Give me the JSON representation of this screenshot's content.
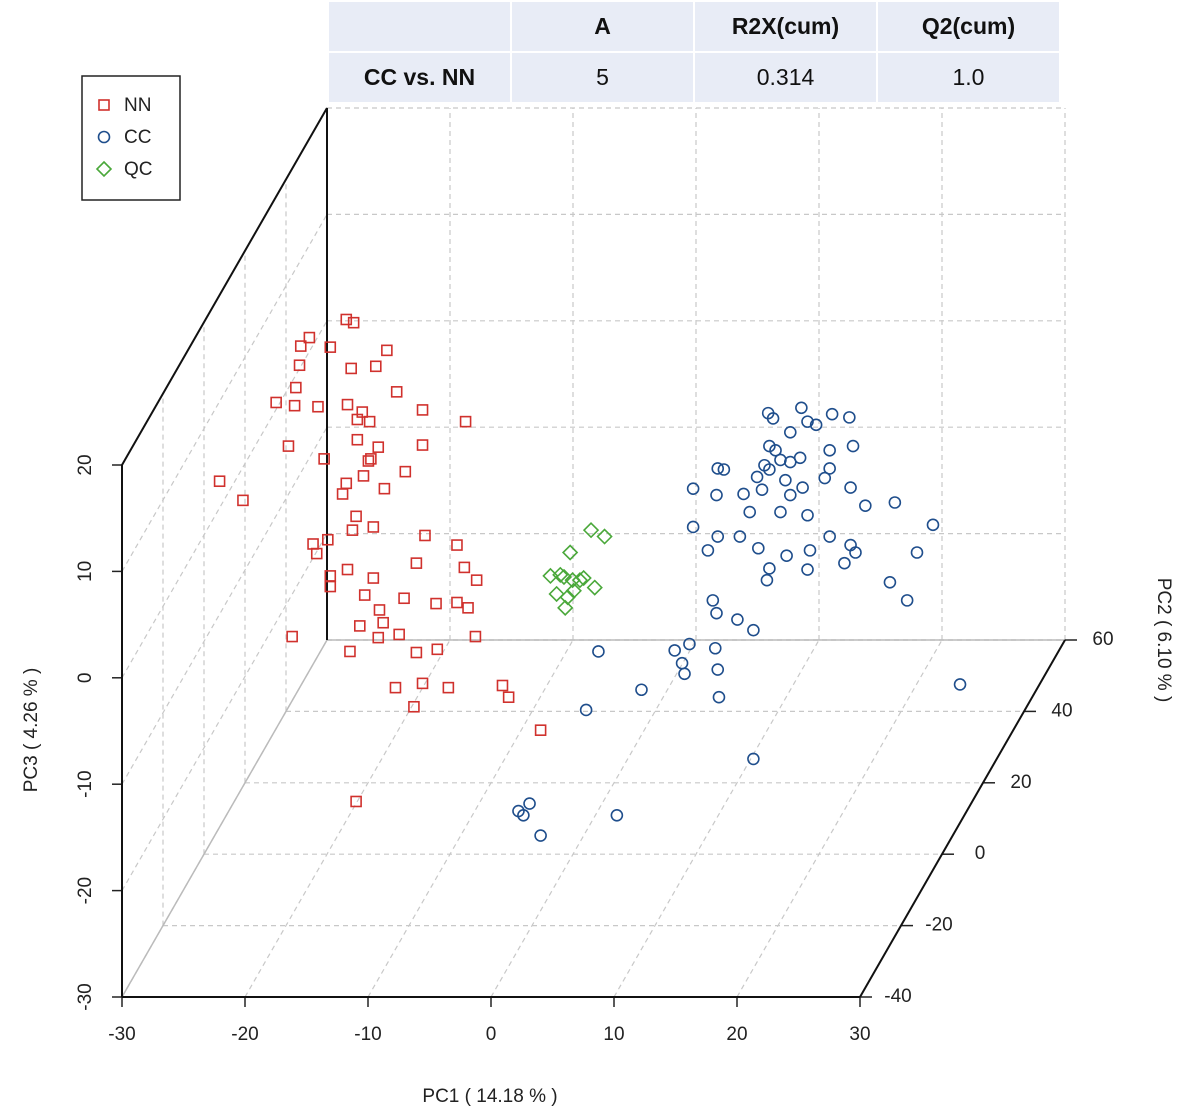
{
  "table": {
    "header": [
      "A",
      "R2X(cum)",
      "Q2(cum)"
    ],
    "rows": [
      [
        "CC vs. NN",
        "5",
        "0.314",
        "1.0"
      ]
    ]
  },
  "chart_data": {
    "type": "scatter3d",
    "xlabel": "PC1 ( 14.18 % )",
    "ylabel": "PC2 ( 6.10 % )",
    "zlabel": "PC3 ( 4.26 % )",
    "xlim": [
      -30,
      30
    ],
    "ylim": [
      -40,
      60
    ],
    "zlim": [
      -30,
      20
    ],
    "xticks": [
      -30,
      -20,
      -10,
      0,
      10,
      20,
      30
    ],
    "yticks": [
      -40,
      -20,
      0,
      20,
      40,
      60
    ],
    "zticks": [
      -30,
      -20,
      -10,
      0,
      10,
      20
    ],
    "grid": true,
    "legend": "top-left",
    "series": [
      {
        "name": "NN",
        "color": "#d0312d",
        "marker": "square",
        "x": [
          -20.1,
          -19.5,
          -23.1,
          -23.8,
          -21.4,
          -16.8,
          -23.9,
          -19.7,
          -17.7,
          -24.2,
          -25.8,
          -24.3,
          -22.4,
          -20.0,
          -16.0,
          -18.8,
          -18.2,
          -19.2,
          -13.9,
          -10.4,
          -24.8,
          -19.2,
          -17.5,
          -13.9,
          -21.9,
          -18.3,
          -18.1,
          -15.3,
          -18.7,
          -30.4,
          -28.5,
          -20.1,
          -20.4,
          -17.0,
          -19.3,
          -19.6,
          -17.9,
          -13.7,
          -22.8,
          -21.6,
          -11.1,
          -22.5,
          -10.5,
          -20.0,
          -17.9,
          -21.4,
          -21.4,
          -14.4,
          -17.4,
          -15.4,
          -12.8,
          -11.1,
          -10.2,
          -9.6,
          -17.1,
          -15.8,
          -24.5,
          -19.8,
          -14.4,
          -12.7,
          -16.1,
          -13.9,
          -11.8,
          -7.4,
          -6.9,
          -14.6,
          -4.3,
          -19.3,
          -9.5,
          -18.6,
          -17.5,
          -19.0
        ],
        "y": [
          10,
          10,
          10,
          10,
          10,
          10,
          10,
          10,
          10,
          10,
          10,
          10,
          10,
          10,
          10,
          10,
          10,
          10,
          10,
          10,
          10,
          10,
          10,
          10,
          10,
          10,
          10,
          10,
          10,
          10,
          10,
          10,
          10,
          10,
          10,
          10,
          10,
          10,
          10,
          10,
          10,
          10,
          10,
          10,
          10,
          10,
          10,
          10,
          10,
          10,
          10,
          10,
          10,
          10,
          10,
          10,
          10,
          10,
          10,
          10,
          10,
          10,
          10,
          10,
          10,
          10,
          10,
          10,
          10,
          10,
          10,
          10
        ],
        "z": [
          16.9,
          16.6,
          15.2,
          14.4,
          14.3,
          14.0,
          12.6,
          12.3,
          12.5,
          10.5,
          9.1,
          8.8,
          8.7,
          8.9,
          10.1,
          8.2,
          7.3,
          7.5,
          8.4,
          7.3,
          5.0,
          5.6,
          4.9,
          5.1,
          3.8,
          3.6,
          3.8,
          2.6,
          2.2,
          1.7,
          -0.1,
          1.5,
          0.5,
          1.0,
          -1.6,
          -2.9,
          -2.6,
          -3.4,
          -4.2,
          -3.8,
          -4.3,
          -5.1,
          -6.4,
          -6.6,
          -7.4,
          -7.2,
          -8.2,
          -6.0,
          -10.4,
          -9.3,
          -9.8,
          -9.7,
          -10.2,
          -12.9,
          -11.6,
          -12.7,
          -12.9,
          -14.3,
          -14.4,
          -14.1,
          -17.7,
          -17.3,
          -17.7,
          -17.5,
          -18.6,
          -19.5,
          -21.7,
          -28.4,
          -7.6,
          -9.0,
          -13.0,
          -11.9
        ]
      },
      {
        "name": "CC",
        "color": "#1f4e8c",
        "marker": "circle",
        "x": [
          14.2,
          14.6,
          16.9,
          19.4,
          20.8,
          17.4,
          18.1,
          16.0,
          14.3,
          14.8,
          15.2,
          13.9,
          16.0,
          16.8,
          19.2,
          21.1,
          10.1,
          10.6,
          13.3,
          14.3,
          15.6,
          17.0,
          18.8,
          19.2,
          8.1,
          10.0,
          12.2,
          13.7,
          16.0,
          20.9,
          24.5,
          27.6,
          12.7,
          15.2,
          22.1,
          17.4,
          8.1,
          10.1,
          9.3,
          11.9,
          13.4,
          15.7,
          17.6,
          19.2,
          20.9,
          21.3,
          20.4,
          26.3,
          24.1,
          25.5,
          14.1,
          14.3,
          17.4,
          9.7,
          10.0,
          11.7,
          13.0,
          7.8,
          6.6,
          0.4,
          7.2,
          7.4,
          9.9,
          10.1,
          10.2,
          3.9,
          -0.6,
          29.8,
          13.0,
          -5.2,
          -6.1,
          -5.7,
          -4.3,
          1.9
        ],
        "y": [
          10,
          10,
          10,
          10,
          10,
          10,
          10,
          10,
          10,
          10,
          10,
          10,
          10,
          10,
          10,
          10,
          10,
          10,
          10,
          10,
          10,
          10,
          10,
          10,
          10,
          10,
          10,
          10,
          10,
          10,
          10,
          10,
          10,
          10,
          10,
          10,
          10,
          10,
          10,
          10,
          10,
          10,
          10,
          10,
          10,
          10,
          10,
          10,
          10,
          10,
          10,
          10,
          10,
          10,
          10,
          10,
          10,
          10,
          10,
          10,
          10,
          10,
          10,
          10,
          10,
          10,
          10,
          10,
          10,
          10,
          10,
          10,
          10,
          10
        ],
        "z": [
          8.1,
          7.6,
          8.6,
          8.0,
          7.7,
          7.3,
          7.0,
          6.3,
          5.0,
          4.6,
          3.7,
          3.2,
          3.5,
          3.9,
          4.6,
          5.0,
          2.9,
          2.8,
          2.1,
          2.8,
          1.8,
          1.1,
          2.0,
          2.9,
          1.0,
          0.4,
          0.5,
          0.9,
          0.4,
          1.1,
          -0.3,
          -2.4,
          -1.2,
          -1.2,
          -0.6,
          -1.5,
          -2.6,
          -3.5,
          -4.8,
          -3.5,
          -4.6,
          -5.3,
          -4.8,
          -3.5,
          -4.3,
          -5.0,
          -6.0,
          -5.0,
          -7.8,
          -9.5,
          -7.6,
          -6.5,
          -6.6,
          -9.5,
          -10.7,
          -11.3,
          -12.3,
          -13.6,
          -14.2,
          -14.3,
          -15.4,
          -16.4,
          -14.0,
          -16.0,
          -18.6,
          -17.9,
          -19.8,
          -17.4,
          -24.4,
          -28.6,
          -29.3,
          -29.7,
          -31.6,
          -29.7
        ]
      },
      {
        "name": "QC",
        "color": "#4aa83a",
        "marker": "diamond",
        "x": [
          -0.2,
          0.9,
          -1.9,
          -3.5,
          -2.7,
          -2.4,
          -1.7,
          -0.8,
          -3.0,
          -1.6,
          0.1,
          -2.3,
          -2.1,
          -1.1
        ],
        "y": [
          10,
          10,
          10,
          10,
          10,
          10,
          10,
          10,
          10,
          10,
          10,
          10,
          10,
          10
        ],
        "z": [
          -2.9,
          -3.5,
          -5.0,
          -7.2,
          -7.1,
          -7.3,
          -7.6,
          -7.4,
          -8.9,
          -8.6,
          -8.3,
          -10.2,
          -9.2,
          -7.6
        ]
      }
    ]
  }
}
